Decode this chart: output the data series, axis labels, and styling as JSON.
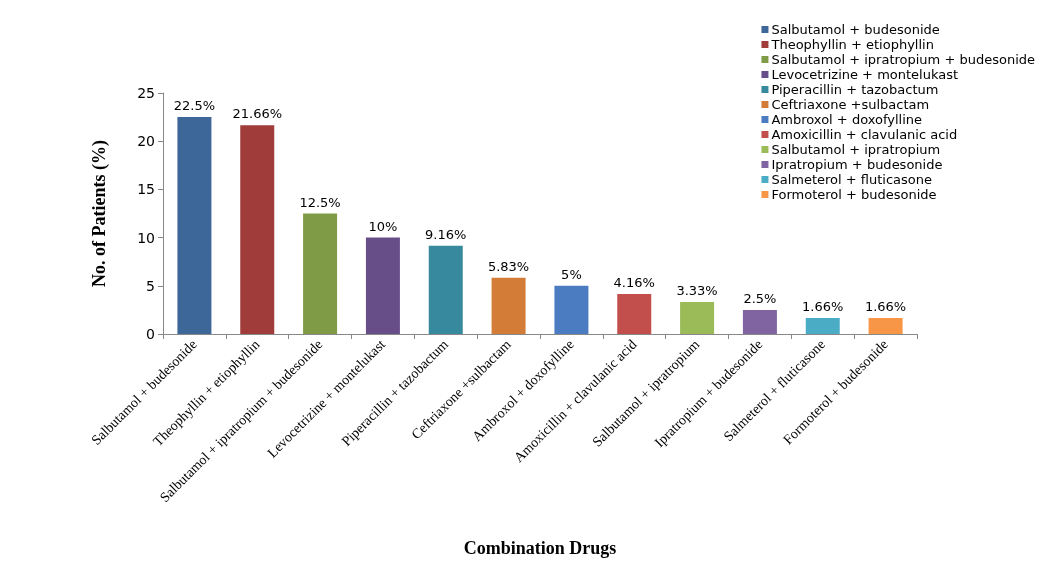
{
  "chart_data": {
    "type": "bar",
    "xlabel": "Combination Drugs",
    "ylabel": "No. of Patients (%)",
    "categories": [
      "Salbutamol + budesonide",
      "Theophyllin + etiophyllin",
      "Salbutamol + ipratropium + budesonide",
      "Levocetrizine + montelukast",
      "Piperacillin + tazobactum",
      "Ceftriaxone +sulbactam",
      "Ambroxol + doxofylline",
      "Amoxicillin + clavulanic acid",
      "Salbutamol + ipratropium",
      "Ipratropium + budesonide",
      "Salmeterol + fluticasone",
      "Formoterol + budesonide"
    ],
    "series": [
      {
        "name": "Salbutamol + budesonide",
        "color": "#3d6699",
        "values": [
          22.5,
          null,
          null,
          null,
          null,
          null,
          null,
          null,
          null,
          null,
          null,
          null
        ],
        "value_labels": [
          "22.5%",
          null,
          null,
          null,
          null,
          null,
          null,
          null,
          null,
          null,
          null,
          null
        ]
      },
      {
        "name": "Theophyllin + etiophyllin",
        "color": "#a03d3a",
        "values": [
          null,
          21.66,
          null,
          null,
          null,
          null,
          null,
          null,
          null,
          null,
          null,
          null
        ],
        "value_labels": [
          null,
          "21.66%",
          null,
          null,
          null,
          null,
          null,
          null,
          null,
          null,
          null,
          null
        ]
      },
      {
        "name": "Salbutamol + ipratropium + budesonide",
        "color": "#7f9b46",
        "values": [
          null,
          null,
          12.5,
          null,
          null,
          null,
          null,
          null,
          null,
          null,
          null,
          null
        ],
        "value_labels": [
          null,
          null,
          "12.5%",
          null,
          null,
          null,
          null,
          null,
          null,
          null,
          null,
          null
        ]
      },
      {
        "name": "Levocetrizine + montelukast",
        "color": "#674e89",
        "values": [
          null,
          null,
          null,
          10,
          null,
          null,
          null,
          null,
          null,
          null,
          null,
          null
        ],
        "value_labels": [
          null,
          null,
          null,
          "10%",
          null,
          null,
          null,
          null,
          null,
          null,
          null,
          null
        ]
      },
      {
        "name": "Piperacillin + tazobactum",
        "color": "#37899e",
        "values": [
          null,
          null,
          null,
          null,
          9.16,
          null,
          null,
          null,
          null,
          null,
          null,
          null
        ],
        "value_labels": [
          null,
          null,
          null,
          null,
          "9.16%",
          null,
          null,
          null,
          null,
          null,
          null,
          null
        ]
      },
      {
        "name": "Ceftriaxone +sulbactam",
        "color": "#d27c38",
        "values": [
          null,
          null,
          null,
          null,
          null,
          5.83,
          null,
          null,
          null,
          null,
          null,
          null
        ],
        "value_labels": [
          null,
          null,
          null,
          null,
          null,
          "5.83%",
          null,
          null,
          null,
          null,
          null,
          null
        ]
      },
      {
        "name": "Ambroxol + doxofylline",
        "color": "#4b7cc2",
        "values": [
          null,
          null,
          null,
          null,
          null,
          null,
          5,
          null,
          null,
          null,
          null,
          null
        ],
        "value_labels": [
          null,
          null,
          null,
          null,
          null,
          null,
          "5%",
          null,
          null,
          null,
          null,
          null
        ]
      },
      {
        "name": "Amoxicillin + clavulanic acid",
        "color": "#c24f4c",
        "values": [
          null,
          null,
          null,
          null,
          null,
          null,
          null,
          4.16,
          null,
          null,
          null,
          null
        ],
        "value_labels": [
          null,
          null,
          null,
          null,
          null,
          null,
          null,
          "4.16%",
          null,
          null,
          null,
          null
        ]
      },
      {
        "name": "Salbutamol + ipratropium",
        "color": "#9bbb59",
        "values": [
          null,
          null,
          null,
          null,
          null,
          null,
          null,
          null,
          3.33,
          null,
          null,
          null
        ],
        "value_labels": [
          null,
          null,
          null,
          null,
          null,
          null,
          null,
          null,
          "3.33%",
          null,
          null,
          null
        ]
      },
      {
        "name": "Ipratropium + budesonide",
        "color": "#8064a2",
        "values": [
          null,
          null,
          null,
          null,
          null,
          null,
          null,
          null,
          null,
          2.5,
          null,
          null
        ],
        "value_labels": [
          null,
          null,
          null,
          null,
          null,
          null,
          null,
          null,
          null,
          "2.5%",
          null,
          null
        ]
      },
      {
        "name": "Salmeterol + fluticasone",
        "color": "#4bacc6",
        "values": [
          null,
          null,
          null,
          null,
          null,
          null,
          null,
          null,
          null,
          null,
          1.66,
          null
        ],
        "value_labels": [
          null,
          null,
          null,
          null,
          null,
          null,
          null,
          null,
          null,
          null,
          "1.66%",
          null
        ]
      },
      {
        "name": "Formoterol + budesonide",
        "color": "#f79646",
        "values": [
          null,
          null,
          null,
          null,
          null,
          null,
          null,
          null,
          null,
          null,
          null,
          1.66
        ],
        "value_labels": [
          null,
          null,
          null,
          null,
          null,
          null,
          null,
          null,
          null,
          null,
          null,
          "1.66%"
        ]
      }
    ],
    "ylim": [
      0,
      25
    ],
    "yticks": [
      0,
      5,
      10,
      15,
      20,
      25
    ],
    "grid": false,
    "legend": "top right"
  }
}
